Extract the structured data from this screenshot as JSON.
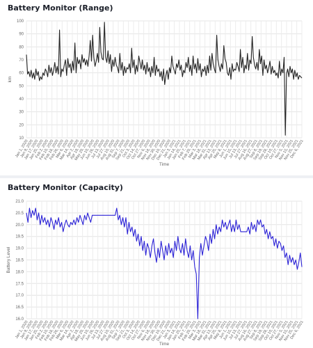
{
  "panels": [
    {
      "title": "Battery Monitor (Range)",
      "chart_data": {
        "type": "line",
        "title": "",
        "xlabel": "Time",
        "ylabel": "km",
        "ylim": [
          10,
          100
        ],
        "y_ticks": [
          10,
          20,
          30,
          40,
          50,
          60,
          70,
          80,
          90,
          100
        ],
        "grid": true,
        "x_tick_labels": [
          "Jan 1, 2020",
          "Jan 9, 2020",
          "Jan 17, 2020",
          "Jan 25, 2020",
          "Feb 2, 2020",
          "Feb 10, 2020",
          "Feb 18, 2020",
          "Feb 26, 2020",
          "Mar 6, 2020",
          "Mar 14, 2020",
          "Apr 2, 2020",
          "Apr 19, 2020",
          "May 20, 2020",
          "Jun 10, 2020",
          "Jun 26, 2020",
          "Jul 13, 2020",
          "Jul 27, 2020",
          "Aug 10, 2020",
          "Aug 31, 2020",
          "Sep 7, 2020",
          "Sep 21, 2020",
          "Oct 3, 2020",
          "Oct 14, 2020",
          "Oct 27, 2020",
          "Nov 6, 2020",
          "Nov 18, 2020",
          "Nov 30, 2020",
          "Dec 10, 2020",
          "Dec 21, 2020",
          "Jan 3, 2021",
          "Jan 14, 2021",
          "Jan 25, 2021",
          "Feb 7, 2021",
          "Feb 20, 2021",
          "Mar 3, 2021",
          "Mar 18, 2021",
          "Mar 31, 2021",
          "Apr 13, 2021",
          "Apr 25, 2021",
          "May 8, 2021",
          "Jun 1, 2021",
          "Jun 15, 2021",
          "Jul 13, 2021",
          "Jul 27, 2021",
          "Aug 16, 2021",
          "Aug 27, 2021",
          "Sep 8, 2021",
          "Sep 19, 2021",
          "Sep 28, 2021",
          "Oct 10, 2021",
          "Oct 27, 2021",
          "Nov 5, 2021",
          "Nov 15, 2021",
          "Nov 25, 2021",
          "Dec 6, 2021"
        ],
        "series": [
          {
            "color": "#222222",
            "values": [
              74,
              59,
              61,
              57,
              62,
              56,
              60,
              55,
              63,
              58,
              61,
              54,
              57,
              55,
              60,
              58,
              63,
              61,
              57,
              66,
              60,
              64,
              58,
              62,
              68,
              60,
              65,
              59,
              93,
              57,
              63,
              61,
              66,
              70,
              58,
              71,
              64,
              67,
              60,
              69,
              62,
              83,
              60,
              72,
              67,
              70,
              63,
              74,
              68,
              71,
              66,
              70,
              65,
              73,
              85,
              69,
              89,
              72,
              65,
              69,
              75,
              68,
              95,
              76,
              71,
              70,
              99,
              72,
              68,
              77,
              67,
              74,
              61,
              70,
              65,
              72,
              66,
              64,
              60,
              75,
              62,
              68,
              58,
              65,
              60,
              64,
              63,
              67,
              60,
              79,
              64,
              70,
              59,
              66,
              61,
              73,
              68,
              63,
              70,
              62,
              66,
              59,
              68,
              61,
              64,
              57,
              65,
              60,
              72,
              58,
              66,
              61,
              63,
              57,
              61,
              54,
              63,
              51,
              58,
              62,
              55,
              64,
              60,
              73,
              65,
              62,
              59,
              67,
              64,
              70,
              62,
              66,
              57,
              62,
              60,
              68,
              64,
              72,
              61,
              66,
              58,
              73,
              63,
              67,
              60,
              71,
              62,
              67,
              57,
              63,
              61,
              65,
              58,
              66,
              60,
              73,
              62,
              75,
              67,
              63,
              60,
              89,
              70,
              65,
              61,
              67,
              63,
              81,
              71,
              68,
              60,
              58,
              64,
              55,
              67,
              61,
              63,
              62,
              68,
              65,
              61,
              78,
              64,
              72,
              60,
              66,
              63,
              75,
              62,
              70,
              67,
              88,
              72,
              66,
              63,
              68,
              62,
              78,
              67,
              73,
              58,
              70,
              63,
              66,
              60,
              64,
              69,
              59,
              65,
              60,
              62,
              58,
              60,
              56,
              69,
              58,
              63,
              60,
              72,
              12,
              59,
              63,
              57,
              65,
              60,
              63,
              55,
              62,
              57,
              60,
              55,
              58,
              57,
              56
            ]
          }
        ]
      }
    },
    {
      "title": "Battery Monitor (Capacity)",
      "chart_data": {
        "type": "line",
        "title": "",
        "xlabel": "Time",
        "ylabel": "Battery Level",
        "ylim": [
          16.0,
          21.0
        ],
        "y_ticks": [
          "16.0",
          "16.5",
          "17.0",
          "17.5",
          "18.0",
          "18.5",
          "19.0",
          "19.5",
          "20.0",
          "20.5",
          "21.0"
        ],
        "grid": true,
        "x_tick_labels": [
          "Jan 1, 2020",
          "Jan 9, 2020",
          "Jan 17, 2020",
          "Jan 25, 2020",
          "Feb 2, 2020",
          "Feb 10, 2020",
          "Feb 18, 2020",
          "Feb 26, 2020",
          "Mar 6, 2020",
          "Mar 14, 2020",
          "Apr 2, 2020",
          "Apr 19, 2020",
          "May 20, 2020",
          "Jun 10, 2020",
          "Jun 26, 2020",
          "Jul 13, 2020",
          "Jul 27, 2020",
          "Aug 10, 2020",
          "Aug 31, 2020",
          "Sep 7, 2020",
          "Sep 21, 2020",
          "Oct 3, 2020",
          "Oct 14, 2020",
          "Oct 27, 2020",
          "Nov 6, 2020",
          "Nov 18, 2020",
          "Nov 30, 2020",
          "Dec 10, 2020",
          "Dec 21, 2020",
          "Jan 3, 2021",
          "Jan 14, 2021",
          "Jan 25, 2021",
          "Feb 7, 2021",
          "Feb 20, 2021",
          "Mar 3, 2021",
          "Mar 18, 2021",
          "Mar 31, 2021",
          "Apr 13, 2021",
          "Apr 25, 2021",
          "May 8, 2021",
          "Jun 1, 2021",
          "Jun 15, 2021",
          "Jul 13, 2021",
          "Jul 27, 2021",
          "Aug 16, 2021",
          "Aug 27, 2021",
          "Sep 8, 2021",
          "Sep 19, 2021",
          "Sep 28, 2021",
          "Oct 10, 2021",
          "Oct 27, 2021",
          "Nov 5, 2021",
          "Nov 15, 2021",
          "Nov 25, 2021",
          "Dec 6, 2021"
        ],
        "series": [
          {
            "color": "#2b22d6",
            "values": [
              20.5,
              20.1,
              20.7,
              20.3,
              20.6,
              20.4,
              20.7,
              20.2,
              20.5,
              20.0,
              20.4,
              20.1,
              20.3,
              20.0,
              20.2,
              19.9,
              20.3,
              20.1,
              19.8,
              20.2,
              20.0,
              20.3,
              19.9,
              20.1,
              19.7,
              20.0,
              20.2,
              20.0,
              19.9,
              20.1,
              20.0,
              20.2,
              20.0,
              20.3,
              20.1,
              20.4,
              20.2,
              20.0,
              20.4,
              20.2,
              20.5,
              20.3,
              20.1,
              20.4,
              20.4,
              20.4,
              20.4,
              20.4,
              20.4,
              20.4,
              20.4,
              20.4,
              20.4,
              20.4,
              20.4,
              20.4,
              20.4,
              20.4,
              20.4,
              20.7,
              20.2,
              20.4,
              20.0,
              20.3,
              19.9,
              20.3,
              19.6,
              20.1,
              19.7,
              19.9,
              19.5,
              19.8,
              19.3,
              19.6,
              19.1,
              19.5,
              18.9,
              19.3,
              18.7,
              19.2,
              19.0,
              18.6,
              19.1,
              19.4,
              18.8,
              18.4,
              19.0,
              18.6,
              19.3,
              18.9,
              18.5,
              19.1,
              18.7,
              19.2,
              18.8,
              19.0,
              18.6,
              19.3,
              18.9,
              19.5,
              19.0,
              18.8,
              19.2,
              18.7,
              19.4,
              18.9,
              18.6,
              19.1,
              18.5,
              18.9,
              18.2,
              17.9,
              16.0,
              18.6,
              19.2,
              18.7,
              19.1,
              19.5,
              19.3,
              18.9,
              19.6,
              19.2,
              19.8,
              19.4,
              20.0,
              19.6,
              19.9,
              19.7,
              20.2,
              19.9,
              20.1,
              19.8,
              20.0,
              20.2,
              19.7,
              20.0,
              19.7,
              20.2,
              19.8,
              20.0,
              19.7,
              19.7,
              19.7,
              19.7,
              19.7,
              19.9,
              19.6,
              20.1,
              19.8,
              20.0,
              19.7,
              20.2,
              20.0,
              20.2,
              19.9,
              20.0,
              19.6,
              19.8,
              19.4,
              19.7,
              19.4,
              19.5,
              19.1,
              19.4,
              19.0,
              19.3,
              19.2,
              18.9,
              19.1,
              18.6,
              18.8,
              18.3,
              18.7,
              18.4,
              18.6,
              18.3,
              18.5,
              18.1,
              18.4,
              18.8,
              18.2
            ]
          }
        ]
      }
    }
  ]
}
